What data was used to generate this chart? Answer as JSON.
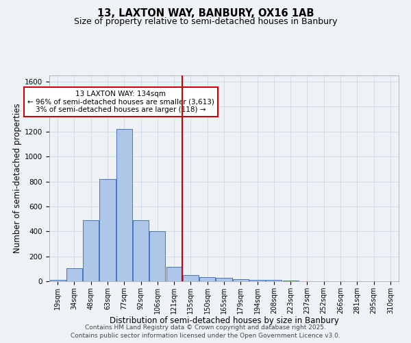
{
  "title": "13, LAXTON WAY, BANBURY, OX16 1AB",
  "subtitle": "Size of property relative to semi-detached houses in Banbury",
  "xlabel": "Distribution of semi-detached houses by size in Banbury",
  "ylabel": "Number of semi-detached properties",
  "categories": [
    "19sqm",
    "34sqm",
    "48sqm",
    "63sqm",
    "77sqm",
    "92sqm",
    "106sqm",
    "121sqm",
    "135sqm",
    "150sqm",
    "165sqm",
    "179sqm",
    "194sqm",
    "208sqm",
    "223sqm",
    "237sqm",
    "252sqm",
    "266sqm",
    "281sqm",
    "295sqm",
    "310sqm"
  ],
  "values": [
    10,
    105,
    490,
    820,
    1220,
    490,
    400,
    115,
    50,
    35,
    30,
    15,
    10,
    10,
    5,
    0,
    0,
    0,
    0,
    0,
    0
  ],
  "bar_color": "#aec7e8",
  "bar_edge_color": "#4472c4",
  "vline_index": 7.5,
  "annotation_title": "13 LAXTON WAY: 134sqm",
  "annotation_line1": "← 96% of semi-detached houses are smaller (3,613)",
  "annotation_line2": "3% of semi-detached houses are larger (118) →",
  "annot_box_color": "#ffffff",
  "annot_border_color": "#cc0000",
  "vline_color": "#cc0000",
  "grid_color": "#d0dce8",
  "background_color": "#eef2f7",
  "ylim": [
    0,
    1650
  ],
  "footer1": "Contains HM Land Registry data © Crown copyright and database right 2025.",
  "footer2": "Contains public sector information licensed under the Open Government Licence v3.0.",
  "title_fontsize": 10.5,
  "subtitle_fontsize": 9,
  "axis_label_fontsize": 8.5,
  "tick_fontsize": 7,
  "footer_fontsize": 6.5,
  "annot_fontsize": 7.5
}
